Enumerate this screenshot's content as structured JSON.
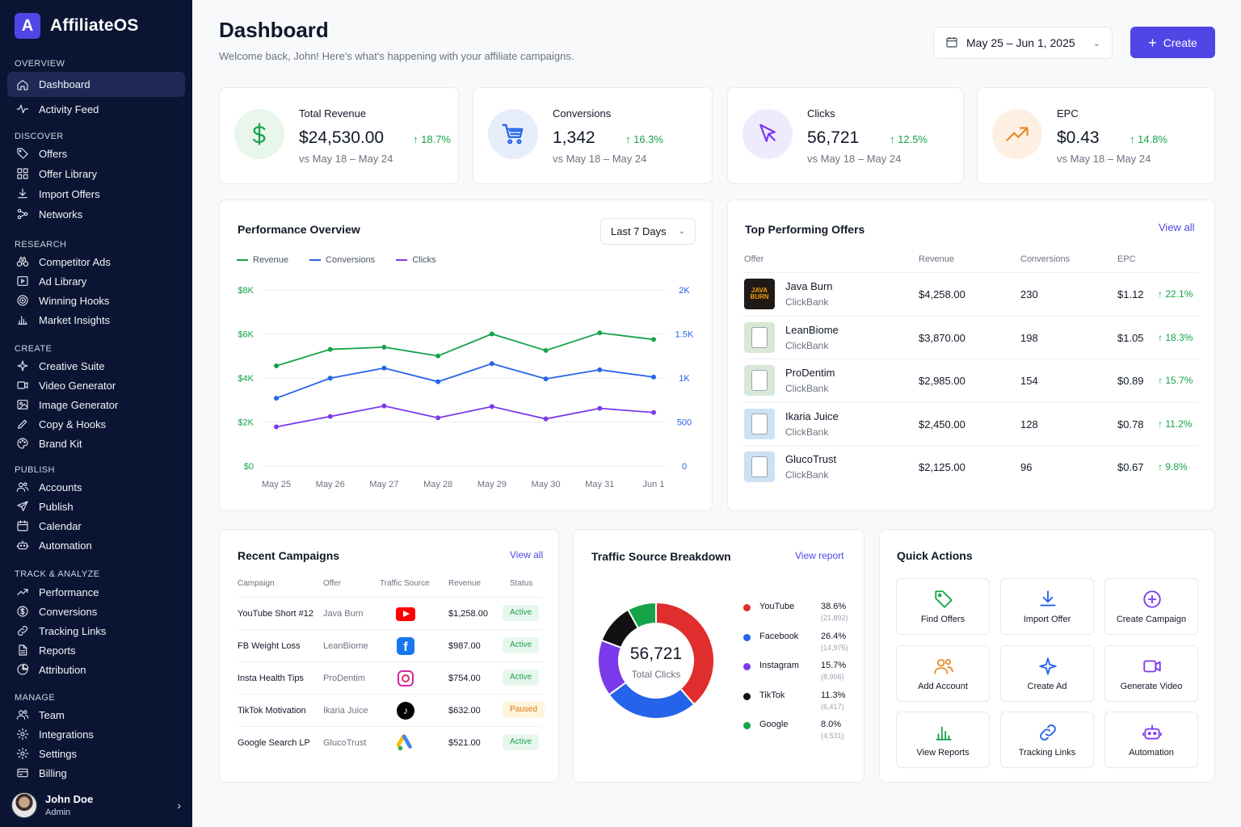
{
  "brand": {
    "logo_letter": "A",
    "name": "AffiliateOS"
  },
  "sidebar": {
    "sections": [
      {
        "title": "OVERVIEW",
        "items": [
          {
            "label": "Dashboard",
            "icon": "home-icon",
            "active": true
          },
          {
            "label": "Activity Feed",
            "icon": "activity-icon"
          }
        ]
      },
      {
        "title": "DISCOVER",
        "items": [
          {
            "label": "Offers",
            "icon": "tag-icon"
          },
          {
            "label": "Offer Library",
            "icon": "grid-icon"
          },
          {
            "label": "Import Offers",
            "icon": "download-icon"
          },
          {
            "label": "Networks",
            "icon": "network-icon"
          }
        ]
      },
      {
        "title": "RESEARCH",
        "items": [
          {
            "label": "Competitor Ads",
            "icon": "binoculars-icon"
          },
          {
            "label": "Ad Library",
            "icon": "play-square-icon"
          },
          {
            "label": "Winning Hooks",
            "icon": "target-icon"
          },
          {
            "label": "Market Insights",
            "icon": "bar-chart-icon"
          }
        ]
      },
      {
        "title": "CREATE",
        "items": [
          {
            "label": "Creative Suite",
            "icon": "sparkle-icon"
          },
          {
            "label": "Video Generator",
            "icon": "video-icon"
          },
          {
            "label": "Image Generator",
            "icon": "image-icon"
          },
          {
            "label": "Copy & Hooks",
            "icon": "pen-icon"
          },
          {
            "label": "Brand Kit",
            "icon": "palette-icon"
          }
        ]
      },
      {
        "title": "PUBLISH",
        "items": [
          {
            "label": "Accounts",
            "icon": "users-icon"
          },
          {
            "label": "Publish",
            "icon": "send-icon"
          },
          {
            "label": "Calendar",
            "icon": "calendar-icon"
          },
          {
            "label": "Automation",
            "icon": "robot-icon"
          }
        ]
      },
      {
        "title": "TRACK & ANALYZE",
        "items": [
          {
            "label": "Performance",
            "icon": "trend-icon"
          },
          {
            "label": "Conversions",
            "icon": "dollar-circle-icon"
          },
          {
            "label": "Tracking Links",
            "icon": "link-icon"
          },
          {
            "label": "Reports",
            "icon": "file-icon"
          },
          {
            "label": "Attribution",
            "icon": "pie-icon"
          }
        ]
      },
      {
        "title": "MANAGE",
        "items": [
          {
            "label": "Team",
            "icon": "users-icon"
          },
          {
            "label": "Integrations",
            "icon": "gear-icon"
          },
          {
            "label": "Settings",
            "icon": "gear-icon"
          },
          {
            "label": "Billing",
            "icon": "card-icon"
          }
        ]
      }
    ]
  },
  "user": {
    "name": "John Doe",
    "role": "Admin"
  },
  "header": {
    "title": "Dashboard",
    "subtitle": "Welcome back, John! Here's what's happening with your affiliate campaigns.",
    "date_range": "May 25 – Jun 1, 2025",
    "create_label": "Create"
  },
  "kpis": [
    {
      "label": "Total Revenue",
      "value": "$24,530.00",
      "change": "18.7%",
      "compare": "vs May 18 – May 24",
      "icon": "dollar-icon",
      "color": "#16a34a",
      "bg": "#e8f6ec"
    },
    {
      "label": "Conversions",
      "value": "1,342",
      "change": "16.3%",
      "compare": "vs May 18 – May 24",
      "icon": "cart-icon",
      "color": "#2563eb",
      "bg": "#e6eefc"
    },
    {
      "label": "Clicks",
      "value": "56,721",
      "change": "12.5%",
      "compare": "vs May 18 – May 24",
      "icon": "cursor-icon",
      "color": "#7c3aed",
      "bg": "#efeafd"
    },
    {
      "label": "EPC",
      "value": "$0.43",
      "change": "14.8%",
      "compare": "vs May 18 – May 24",
      "icon": "trend-up-icon",
      "color": "#ea8a2a",
      "bg": "#fdf0e3"
    }
  ],
  "performance": {
    "title": "Performance Overview",
    "range_label": "Last 7 Days",
    "legend": [
      "Revenue",
      "Conversions",
      "Clicks"
    ]
  },
  "chart_data": {
    "type": "line",
    "x": [
      "May 25",
      "May 26",
      "May 27",
      "May 28",
      "May 29",
      "May 30",
      "May 31",
      "Jun 1"
    ],
    "y_left_ticks": [
      "$8K",
      "$6K",
      "$4K",
      "$2K",
      "$0"
    ],
    "y_right_ticks": [
      "2K",
      "1.5K",
      "1K",
      "500",
      "0"
    ],
    "ylim_left": [
      0,
      8000
    ],
    "ylim_right": [
      0,
      2000
    ],
    "series": [
      {
        "name": "Revenue",
        "axis": "left",
        "color": "#16a34a",
        "values": [
          4550,
          5300,
          5400,
          5000,
          6000,
          5250,
          6050,
          5750
        ]
      },
      {
        "name": "Conversions",
        "axis": "left",
        "color": "#2563eb",
        "values": [
          3080,
          3990,
          4450,
          3830,
          4650,
          3960,
          4370,
          4040
        ]
      },
      {
        "name": "Clicks",
        "axis": "left",
        "color": "#7c3aed",
        "values": [
          1780,
          2250,
          2730,
          2190,
          2700,
          2140,
          2620,
          2430
        ]
      }
    ],
    "grid": true,
    "legend_position": "top-left"
  },
  "top_offers": {
    "title": "Top Performing Offers",
    "view_all": "View all",
    "columns": [
      "Offer",
      "Revenue",
      "Conversions",
      "EPC"
    ],
    "rows": [
      {
        "name": "Java Burn",
        "network": "ClickBank",
        "revenue": "$4,258.00",
        "conversions": "230",
        "epc": "$1.12",
        "change": "22.1%",
        "thumb_text": "JAVA BURN",
        "thumb": "#1f1a17"
      },
      {
        "name": "LeanBiome",
        "network": "ClickBank",
        "revenue": "$3,870.00",
        "conversions": "198",
        "epc": "$1.05",
        "change": "18.3%",
        "thumb": "#d9e8d2"
      },
      {
        "name": "ProDentim",
        "network": "ClickBank",
        "revenue": "$2,985.00",
        "conversions": "154",
        "epc": "$0.89",
        "change": "15.7%",
        "thumb": "#d6e8d8"
      },
      {
        "name": "Ikaria Juice",
        "network": "ClickBank",
        "revenue": "$2,450.00",
        "conversions": "128",
        "epc": "$0.78",
        "change": "11.2%",
        "thumb": "#cfe2f3"
      },
      {
        "name": "GlucoTrust",
        "network": "ClickBank",
        "revenue": "$2,125.00",
        "conversions": "96",
        "epc": "$0.67",
        "change": "9.8%",
        "thumb": "#cde1f2"
      }
    ]
  },
  "campaigns": {
    "title": "Recent Campaigns",
    "view_all": "View all",
    "columns": [
      "Campaign",
      "Offer",
      "Traffic Source",
      "Revenue",
      "Status"
    ],
    "rows": [
      {
        "name": "YouTube Short #12",
        "offer": "Java Burn",
        "source": "youtube-icon",
        "revenue": "$1,258.00",
        "status": "Active"
      },
      {
        "name": "FB Weight Loss",
        "offer": "LeanBiome",
        "source": "facebook-icon",
        "revenue": "$987.00",
        "status": "Active"
      },
      {
        "name": "Insta Health Tips",
        "offer": "ProDentim",
        "source": "instagram-icon",
        "revenue": "$754.00",
        "status": "Active"
      },
      {
        "name": "TikTok Motivation",
        "offer": "Ikaria Juice",
        "source": "tiktok-icon",
        "revenue": "$632.00",
        "status": "Paused"
      },
      {
        "name": "Google Search LP",
        "offer": "GlucoTrust",
        "source": "google-ads-icon",
        "revenue": "$521.00",
        "status": "Active"
      }
    ]
  },
  "traffic": {
    "title": "Traffic Source Breakdown",
    "view_report": "View report",
    "total": "56,721",
    "total_label": "Total Clicks",
    "sources": [
      {
        "name": "YouTube",
        "pct": "38.6%",
        "count": "(21,892)",
        "value": 38.6,
        "color": "#e02d2d"
      },
      {
        "name": "Facebook",
        "pct": "26.4%",
        "count": "(14,975)",
        "value": 26.4,
        "color": "#2563eb"
      },
      {
        "name": "Instagram",
        "pct": "15.7%",
        "count": "(8,906)",
        "value": 15.7,
        "color": "#7c3aed"
      },
      {
        "name": "TikTok",
        "pct": "11.3%",
        "count": "(6,417)",
        "value": 11.3,
        "color": "#111111"
      },
      {
        "name": "Google",
        "pct": "8.0%",
        "count": "(4,531)",
        "value": 8.0,
        "color": "#16a34a"
      }
    ]
  },
  "quick_actions": {
    "title": "Quick Actions",
    "items": [
      {
        "label": "Find Offers",
        "icon": "tag-icon",
        "color": "#16a34a"
      },
      {
        "label": "Import Offer",
        "icon": "download-icon",
        "color": "#2563eb"
      },
      {
        "label": "Create Campaign",
        "icon": "plus-circle-icon",
        "color": "#7c3aed"
      },
      {
        "label": "Add Account",
        "icon": "users-icon",
        "color": "#ea8a2a"
      },
      {
        "label": "Create Ad",
        "icon": "sparkle-icon",
        "color": "#2563eb"
      },
      {
        "label": "Generate Video",
        "icon": "video-icon",
        "color": "#7c3aed"
      },
      {
        "label": "View Reports",
        "icon": "bar-chart-icon",
        "color": "#16a34a"
      },
      {
        "label": "Tracking Links",
        "icon": "link-icon",
        "color": "#2563eb"
      },
      {
        "label": "Automation",
        "icon": "robot-icon",
        "color": "#7c3aed"
      }
    ]
  }
}
